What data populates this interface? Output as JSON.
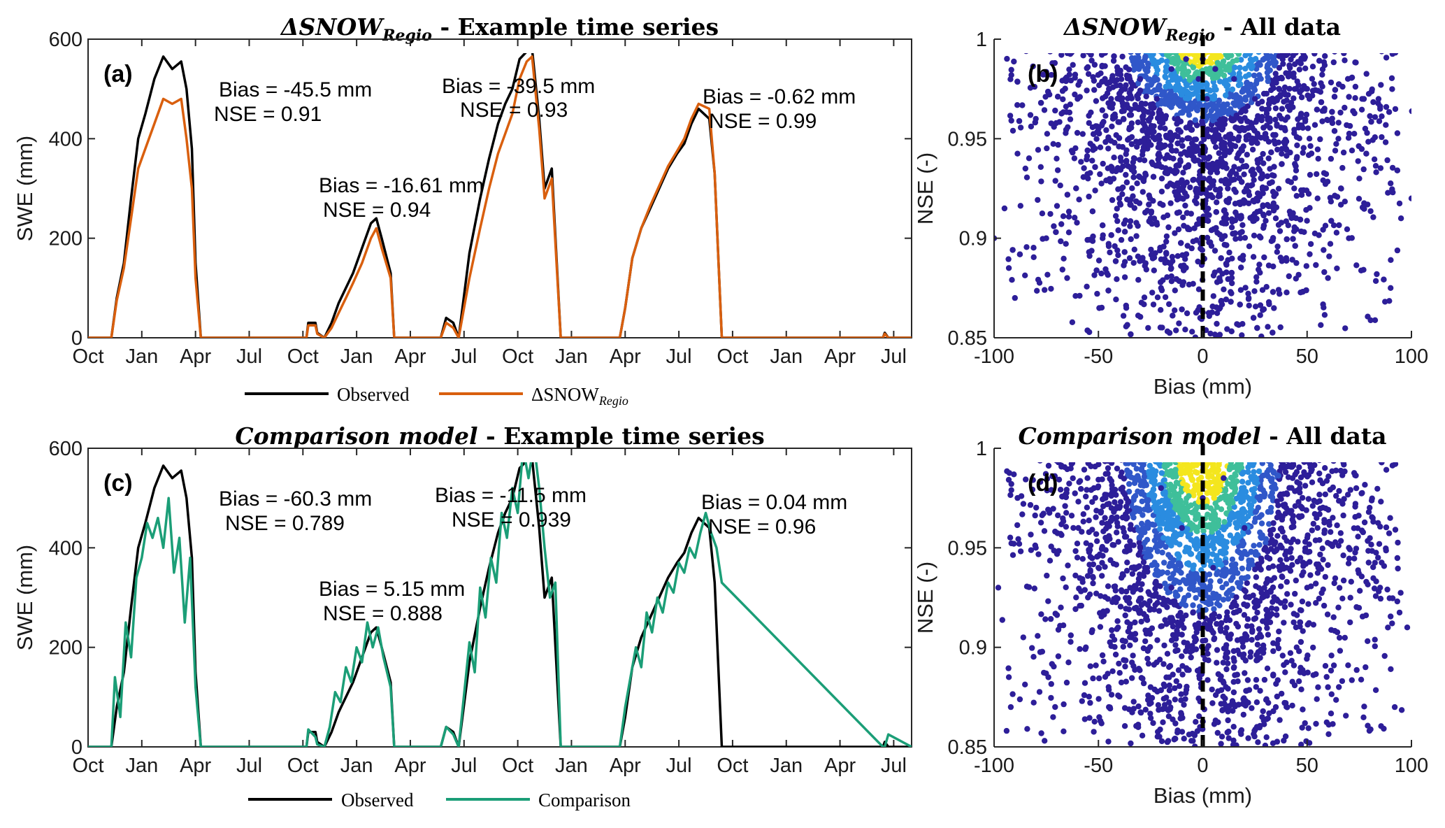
{
  "panels": {
    "top_left_title_prefix": "ΔSNOW",
    "top_left_title_sub": "Regio",
    "top_left_title_rest": " - Example time series",
    "top_right_title_prefix": "ΔSNOW",
    "top_right_title_sub": "Regio",
    "top_right_title_rest": " - All data",
    "bottom_left_title_italic": "Comparison model",
    "bottom_left_title_rest": " - Example time series",
    "bottom_right_title_italic": "Comparison model",
    "bottom_right_title_rest": " - All data",
    "label_a": "(a)",
    "label_b": "(b)",
    "label_c": "(c)",
    "label_d": "(d)"
  },
  "legend_top": {
    "observed": "Observed",
    "model_prefix": "ΔSNOW",
    "model_sub": "Regio"
  },
  "legend_bottom": {
    "observed": "Observed",
    "model": "Comparison"
  },
  "annotations_a": [
    {
      "bias": "Bias = -45.5 mm",
      "nse": "NSE = 0.91"
    },
    {
      "bias": "Bias = -16.61 mm",
      "nse": "NSE = 0.94"
    },
    {
      "bias": "Bias = -39.5 mm",
      "nse": "NSE = 0.93"
    },
    {
      "bias": "Bias = -0.62 mm",
      "nse": "NSE = 0.99"
    }
  ],
  "annotations_c": [
    {
      "bias": "Bias = -60.3 mm",
      "nse": "NSE = 0.789"
    },
    {
      "bias": "Bias = 5.15 mm",
      "nse": "NSE = 0.888"
    },
    {
      "bias": "Bias = -11.5 mm",
      "nse": "NSE = 0.939"
    },
    {
      "bias": "Bias = 0.04 mm",
      "nse": "NSE = 0.96"
    }
  ],
  "colors": {
    "observed": "#000000",
    "regio": "#d95f0e",
    "comparison": "#1b9e77",
    "scatter_low": "#2d1e99",
    "scatter_mid": "#2a8ce0",
    "scatter_high": "#f4e61e"
  },
  "chart_data": [
    {
      "id": "a",
      "type": "line",
      "ylabel": "SWE (mm)",
      "xlabel": "",
      "ylim": [
        0,
        600
      ],
      "yticks": [
        0,
        200,
        400,
        600
      ],
      "xlim": [
        0,
        46
      ],
      "xticks": [
        0,
        3,
        6,
        9,
        12,
        15,
        18,
        21,
        24,
        27,
        30,
        33,
        36,
        39,
        42,
        45
      ],
      "xtick_labels": [
        "Oct",
        "Jan",
        "Apr",
        "Jul",
        "Oct",
        "Jan",
        "Apr",
        "Jul",
        "Oct",
        "Jan",
        "Apr",
        "Jul",
        "Oct",
        "Jan",
        "Apr",
        "Jul"
      ],
      "series": [
        {
          "name": "Observed",
          "color": "#000000",
          "x": [
            0,
            1.3,
            1.6,
            2.0,
            2.4,
            2.8,
            3.2,
            3.7,
            4.2,
            4.7,
            5.2,
            5.5,
            5.8,
            6.0,
            6.3,
            7.5,
            12.2,
            12.3,
            12.7,
            12.8,
            13.2,
            13.6,
            14.0,
            14.4,
            14.8,
            15.3,
            15.8,
            16.1,
            16.4,
            16.9,
            17.1,
            19.7,
            20.0,
            20.4,
            20.7,
            21.3,
            21.9,
            22.4,
            22.9,
            23.3,
            23.7,
            24.1,
            24.5,
            24.8,
            25.2,
            25.5,
            25.9,
            26.4,
            26.9,
            27.4,
            28.0,
            29.7,
            30.0,
            30.4,
            30.9,
            31.4,
            31.9,
            32.4,
            32.9,
            33.3,
            33.7,
            34.1,
            34.7,
            35.0,
            35.4,
            44.4,
            44.5,
            44.7,
            46
          ],
          "y": [
            0,
            0,
            80,
            150,
            280,
            400,
            450,
            520,
            565,
            540,
            555,
            500,
            380,
            150,
            0,
            0,
            0,
            30,
            30,
            10,
            0,
            30,
            70,
            100,
            130,
            180,
            230,
            240,
            200,
            130,
            0,
            0,
            40,
            30,
            0,
            170,
            280,
            360,
            430,
            470,
            500,
            560,
            575,
            580,
            440,
            300,
            340,
            0,
            0,
            0,
            0,
            0,
            60,
            160,
            220,
            260,
            300,
            340,
            370,
            390,
            430,
            460,
            440,
            330,
            0,
            0,
            10,
            0,
            0
          ]
        },
        {
          "name": "ΔSNOW_Regio",
          "color": "#d95f0e",
          "x": [
            0,
            1.3,
            1.6,
            2.0,
            2.4,
            2.8,
            3.2,
            3.7,
            4.2,
            4.7,
            5.2,
            5.5,
            5.8,
            6.0,
            6.3,
            7.5,
            12.2,
            12.3,
            12.7,
            12.8,
            13.2,
            13.6,
            14.0,
            14.4,
            14.8,
            15.3,
            15.8,
            16.1,
            16.4,
            16.9,
            17.1,
            19.7,
            20.0,
            20.4,
            20.7,
            21.3,
            21.9,
            22.4,
            22.9,
            23.3,
            23.7,
            24.1,
            24.5,
            24.8,
            25.2,
            25.5,
            25.9,
            26.4,
            26.9,
            27.4,
            28.0,
            29.7,
            30.0,
            30.4,
            30.9,
            31.4,
            31.9,
            32.4,
            32.9,
            33.3,
            33.7,
            34.1,
            34.7,
            35.0,
            35.4,
            44.4,
            44.5,
            44.7,
            46
          ],
          "y": [
            0,
            0,
            75,
            140,
            240,
            340,
            380,
            430,
            480,
            470,
            480,
            400,
            300,
            120,
            0,
            0,
            0,
            25,
            25,
            8,
            0,
            20,
            50,
            80,
            110,
            150,
            200,
            220,
            180,
            120,
            0,
            0,
            30,
            20,
            0,
            120,
            220,
            300,
            370,
            410,
            450,
            520,
            555,
            565,
            420,
            280,
            320,
            0,
            0,
            0,
            0,
            0,
            60,
            160,
            220,
            265,
            305,
            345,
            375,
            400,
            440,
            470,
            460,
            330,
            0,
            0,
            8,
            0,
            0
          ]
        }
      ]
    },
    {
      "id": "c",
      "type": "line",
      "ylabel": "SWE (mm)",
      "xlabel": "",
      "ylim": [
        0,
        600
      ],
      "yticks": [
        0,
        200,
        400,
        600
      ],
      "xlim": [
        0,
        46
      ],
      "xticks": [
        0,
        3,
        6,
        9,
        12,
        15,
        18,
        21,
        24,
        27,
        30,
        33,
        36,
        39,
        42,
        45
      ],
      "xtick_labels": [
        "Oct",
        "Jan",
        "Apr",
        "Jul",
        "Oct",
        "Jan",
        "Apr",
        "Jul",
        "Oct",
        "Jan",
        "Apr",
        "Jul",
        "Oct",
        "Jan",
        "Apr",
        "Jul"
      ],
      "series": [
        {
          "name": "Observed",
          "color": "#000000",
          "x": [
            0,
            1.3,
            1.6,
            2.0,
            2.4,
            2.8,
            3.2,
            3.7,
            4.2,
            4.7,
            5.2,
            5.5,
            5.8,
            6.0,
            6.3,
            7.5,
            12.2,
            12.3,
            12.7,
            12.8,
            13.2,
            13.6,
            14.0,
            14.4,
            14.8,
            15.3,
            15.8,
            16.1,
            16.4,
            16.9,
            17.1,
            19.7,
            20.0,
            20.4,
            20.7,
            21.3,
            21.9,
            22.4,
            22.9,
            23.3,
            23.7,
            24.1,
            24.5,
            24.8,
            25.2,
            25.5,
            25.9,
            26.4,
            26.9,
            27.4,
            28.0,
            29.7,
            30.0,
            30.4,
            30.9,
            31.4,
            31.9,
            32.4,
            32.9,
            33.3,
            33.7,
            34.1,
            34.7,
            35.0,
            35.4,
            44.4,
            44.5,
            44.7,
            46
          ],
          "y": [
            0,
            0,
            80,
            150,
            280,
            400,
            450,
            520,
            565,
            540,
            555,
            500,
            380,
            150,
            0,
            0,
            0,
            30,
            30,
            10,
            0,
            30,
            70,
            100,
            130,
            180,
            230,
            240,
            200,
            130,
            0,
            0,
            40,
            30,
            0,
            170,
            280,
            360,
            430,
            470,
            500,
            560,
            575,
            580,
            440,
            300,
            340,
            0,
            0,
            0,
            0,
            0,
            60,
            160,
            220,
            260,
            300,
            340,
            370,
            390,
            430,
            460,
            440,
            330,
            0,
            0,
            10,
            0,
            0
          ]
        },
        {
          "name": "Comparison",
          "color": "#1b9e77",
          "x": [
            0,
            1.3,
            1.5,
            1.8,
            2.1,
            2.4,
            2.7,
            3.0,
            3.3,
            3.6,
            3.9,
            4.2,
            4.5,
            4.8,
            5.1,
            5.4,
            5.7,
            6.0,
            6.3,
            7.5,
            12.2,
            12.3,
            12.7,
            12.8,
            13.2,
            13.5,
            13.8,
            14.1,
            14.4,
            14.7,
            15.0,
            15.3,
            15.6,
            15.9,
            16.2,
            16.5,
            16.9,
            17.1,
            19.7,
            20.0,
            20.4,
            20.7,
            21.3,
            21.6,
            21.9,
            22.2,
            22.5,
            22.8,
            23.1,
            23.4,
            23.7,
            24.0,
            24.3,
            24.6,
            24.9,
            25.2,
            25.5,
            25.8,
            26.1,
            26.4,
            26.9,
            27.4,
            28.0,
            29.7,
            30.0,
            30.3,
            30.6,
            30.9,
            31.2,
            31.5,
            31.8,
            32.1,
            32.4,
            32.7,
            33.0,
            33.3,
            33.6,
            33.9,
            34.2,
            34.5,
            34.8,
            35.1,
            35.4,
            44.4,
            44.5,
            44.7,
            46
          ],
          "y": [
            0,
            0,
            140,
            60,
            250,
            180,
            340,
            380,
            450,
            420,
            460,
            400,
            500,
            350,
            420,
            250,
            380,
            120,
            0,
            0,
            0,
            35,
            20,
            5,
            0,
            40,
            110,
            90,
            160,
            130,
            200,
            170,
            250,
            200,
            240,
            180,
            120,
            0,
            0,
            40,
            25,
            0,
            210,
            150,
            320,
            260,
            380,
            330,
            470,
            420,
            520,
            470,
            600,
            540,
            610,
            520,
            400,
            300,
            330,
            0,
            0,
            0,
            0,
            0,
            80,
            140,
            200,
            160,
            270,
            230,
            300,
            270,
            330,
            310,
            370,
            350,
            400,
            380,
            430,
            470,
            430,
            400,
            330,
            0,
            0,
            25,
            0
          ]
        }
      ]
    },
    {
      "id": "b",
      "type": "scatter",
      "xlabel": "Bias (mm)",
      "ylabel": "NSE (-)",
      "xlim": [
        -100,
        100
      ],
      "ylim": [
        0.85,
        1.0
      ],
      "xticks": [
        -100,
        -50,
        0,
        50,
        100
      ],
      "yticks": [
        0.85,
        0.9,
        0.95,
        1.0
      ],
      "ytick_labels": [
        "0.85",
        "0.9",
        "0.95",
        "1"
      ],
      "reference_line_x": 0,
      "points": [
        [
          -95,
          0.915
        ],
        [
          -90,
          0.87
        ],
        [
          -85,
          0.935
        ],
        [
          -80,
          0.96
        ],
        [
          -75,
          0.9
        ],
        [
          -70,
          0.94
        ],
        [
          -65,
          0.88
        ],
        [
          -60,
          0.97
        ],
        [
          -55,
          0.93
        ],
        [
          -50,
          0.955
        ],
        [
          -48,
          0.9
        ],
        [
          -45,
          0.975
        ],
        [
          -40,
          0.92
        ],
        [
          -38,
          0.96
        ],
        [
          -35,
          0.89
        ],
        [
          -30,
          0.98
        ],
        [
          -28,
          0.95
        ],
        [
          -25,
          0.91
        ],
        [
          -22,
          0.97
        ],
        [
          -20,
          0.875
        ],
        [
          -18,
          0.94
        ],
        [
          -15,
          0.985
        ],
        [
          -12,
          0.96
        ],
        [
          -10,
          0.92
        ],
        [
          -8,
          0.99
        ],
        [
          -6,
          0.945
        ],
        [
          -4,
          0.905
        ],
        [
          -2,
          0.98
        ],
        [
          0,
          0.99
        ],
        [
          2,
          0.97
        ],
        [
          4,
          0.935
        ],
        [
          6,
          0.985
        ],
        [
          8,
          0.88
        ],
        [
          10,
          0.96
        ],
        [
          12,
          0.925
        ],
        [
          15,
          0.98
        ],
        [
          18,
          0.9
        ],
        [
          20,
          0.955
        ],
        [
          22,
          0.87
        ],
        [
          25,
          0.97
        ],
        [
          28,
          0.93
        ],
        [
          30,
          0.95
        ],
        [
          35,
          0.91
        ],
        [
          38,
          0.965
        ],
        [
          40,
          0.89
        ],
        [
          45,
          0.94
        ],
        [
          50,
          0.975
        ],
        [
          55,
          0.92
        ],
        [
          60,
          0.88
        ],
        [
          65,
          0.95
        ],
        [
          70,
          0.9
        ],
        [
          75,
          0.93
        ],
        [
          85,
          0.965
        ],
        [
          90,
          0.875
        ],
        [
          95,
          0.91
        ],
        [
          -100,
          0.9
        ],
        [
          100,
          0.92
        ]
      ]
    },
    {
      "id": "d",
      "type": "scatter",
      "xlabel": "Bias (mm)",
      "ylabel": "NSE (-)",
      "xlim": [
        -100,
        100
      ],
      "ylim": [
        0.85,
        1.0
      ],
      "xticks": [
        -100,
        -50,
        0,
        50,
        100
      ],
      "yticks": [
        0.85,
        0.9,
        0.95,
        1.0
      ],
      "ytick_labels": [
        "0.85",
        "0.9",
        "0.95",
        "1"
      ],
      "reference_line_x": 0,
      "points": [
        [
          -98,
          0.93
        ],
        [
          -92,
          0.87
        ],
        [
          -86,
          0.905
        ],
        [
          -80,
          0.95
        ],
        [
          -74,
          0.885
        ],
        [
          -68,
          0.92
        ],
        [
          -62,
          0.96
        ],
        [
          -56,
          0.9
        ],
        [
          -50,
          0.94
        ],
        [
          -45,
          0.87
        ],
        [
          -40,
          0.97
        ],
        [
          -35,
          0.91
        ],
        [
          -30,
          0.95
        ],
        [
          -25,
          0.88
        ],
        [
          -20,
          0.98
        ],
        [
          -15,
          0.93
        ],
        [
          -10,
          0.96
        ],
        [
          -5,
          0.9
        ],
        [
          0,
          0.975
        ],
        [
          5,
          0.94
        ],
        [
          10,
          0.985
        ],
        [
          15,
          0.89
        ],
        [
          20,
          0.96
        ],
        [
          25,
          0.92
        ],
        [
          30,
          0.95
        ],
        [
          35,
          0.87
        ],
        [
          40,
          0.97
        ],
        [
          45,
          0.9
        ],
        [
          50,
          0.93
        ],
        [
          55,
          0.96
        ],
        [
          60,
          0.88
        ],
        [
          65,
          0.92
        ],
        [
          70,
          0.95
        ],
        [
          78,
          0.89
        ],
        [
          85,
          0.93
        ],
        [
          92,
          0.87
        ],
        [
          98,
          0.91
        ]
      ]
    }
  ]
}
